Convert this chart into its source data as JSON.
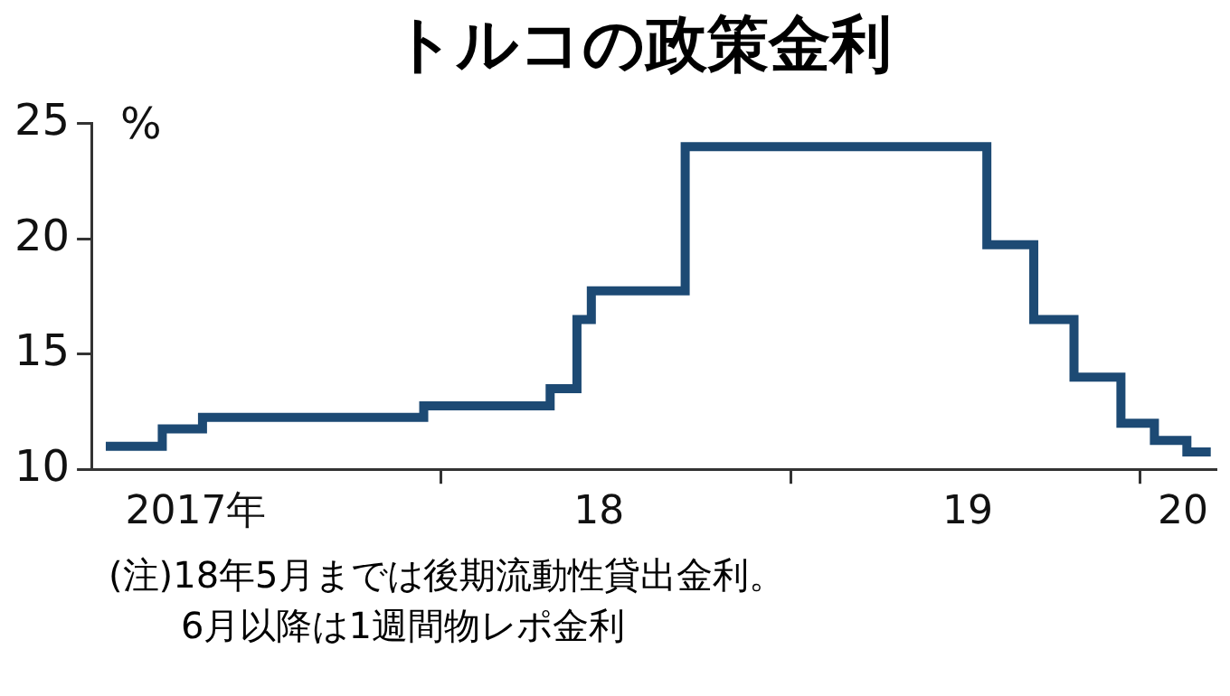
{
  "chart_data": {
    "type": "step",
    "title": "トルコの政策金利",
    "ylabel": "%",
    "x": [
      "2017-01-16",
      "2017-03-16",
      "2017-04-27",
      "2017-12-14",
      "2018-04-25",
      "2018-05-23",
      "2018-06-07",
      "2018-09-13",
      "2019-07-25",
      "2019-09-12",
      "2019-10-24",
      "2019-12-12",
      "2020-01-16",
      "2020-02-19",
      "2020-03-15"
    ],
    "series": [
      {
        "color": "#1d4a74",
        "values": [
          11,
          11.75,
          12.25,
          12.75,
          13.5,
          16.5,
          17.75,
          24,
          19.75,
          16.5,
          14,
          12,
          11.25,
          10.75,
          10.75
        ]
      }
    ],
    "xlim": [
      "2017-01-01",
      "2020-03-20"
    ],
    "xticks": [
      {
        "value": "2017-04-20",
        "label": "2017年"
      },
      {
        "value": "2018-01-01",
        "label": null
      },
      {
        "value": "2018-06-15",
        "label": "18"
      },
      {
        "value": "2019-01-01",
        "label": null
      },
      {
        "value": "2019-07-05",
        "label": "19"
      },
      {
        "value": "2020-01-01",
        "label": null
      },
      {
        "value": "2020-02-15",
        "label": "20"
      }
    ],
    "ylim": [
      10,
      25
    ],
    "yticks": [
      10,
      15,
      20,
      25
    ],
    "grid": false,
    "legend": false,
    "line_style": "solid",
    "marker": "none",
    "annotations": [
      "(注)18年5月までは後期流動性貸出金利。",
      "6月以降は1週間物レポ金利"
    ]
  }
}
